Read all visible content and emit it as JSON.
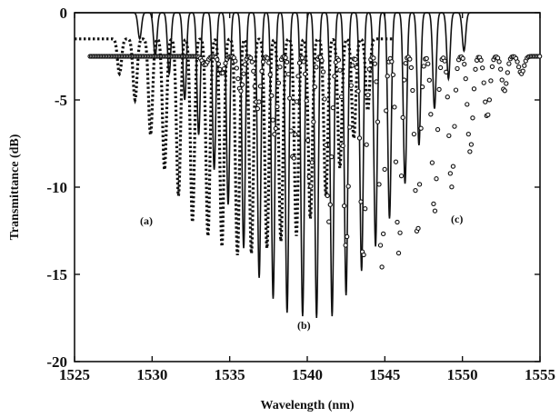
{
  "chart_data": {
    "type": "line",
    "title": "",
    "xlabel": "Wavelength (nm)",
    "ylabel": "Transmittance (dB)",
    "xlim": [
      1525,
      1555
    ],
    "ylim": [
      -20,
      0
    ],
    "xticks": [
      1525,
      1530,
      1535,
      1540,
      1545,
      1550,
      1555
    ],
    "yticks": [
      0,
      -5,
      -10,
      -15,
      -20
    ],
    "x_tick_labels": [
      "1525",
      "1530",
      "1535",
      "1540",
      "1545",
      "1550",
      "1555"
    ],
    "y_tick_labels": [
      "0",
      "-5",
      "-10",
      "-15",
      "-20"
    ],
    "grid": false,
    "line_color": "#111111",
    "series": [
      {
        "label": "(a)",
        "style": "dotted",
        "dip_wavelengths_nm": [
          1527.9,
          1528.9,
          1529.9,
          1530.8,
          1531.7,
          1532.6,
          1533.6,
          1534.5,
          1535.5,
          1536.4,
          1537.4,
          1538.3,
          1539.3,
          1540.2,
          1541.2,
          1542.1,
          1543.0,
          1543.9
        ],
        "dip_depths_db": [
          -3.5,
          -5.0,
          -7.0,
          -9.0,
          -10.5,
          -12.0,
          -12.8,
          -13.4,
          -13.9,
          -13.8,
          -13.5,
          -13.1,
          -12.8,
          -11.8,
          -10.5,
          -8.9,
          -7.2,
          -5.6
        ],
        "baseline_db": -1.5
      },
      {
        "label": "(b)",
        "style": "solid",
        "dip_wavelengths_nm": [
          1529.2,
          1530.2,
          1531.1,
          1532.1,
          1533.0,
          1534.0,
          1534.9,
          1535.9,
          1536.9,
          1537.8,
          1538.7,
          1539.7,
          1540.6,
          1541.6,
          1542.5,
          1543.5,
          1544.4,
          1545.3,
          1546.3,
          1547.2,
          1548.2,
          1549.1,
          1550.1
        ],
        "dip_depths_db": [
          -1.5,
          -2.5,
          -3.5,
          -5.0,
          -7.0,
          -9.0,
          -11.0,
          -13.5,
          -15.2,
          -16.4,
          -17.2,
          -17.4,
          -17.5,
          -17.4,
          -16.2,
          -14.8,
          -13.4,
          -11.8,
          -9.8,
          -7.6,
          -5.5,
          -3.8,
          -2.2
        ],
        "baseline_db": 0
      },
      {
        "label": "(c)",
        "style": "circles",
        "dip_wavelengths_nm": [
          1533.4,
          1534.5,
          1535.7,
          1536.8,
          1537.9,
          1539.1,
          1540.2,
          1541.4,
          1542.5,
          1543.6,
          1544.8,
          1545.9,
          1547.1,
          1548.2,
          1549.3,
          1550.5,
          1551.6,
          1552.7,
          1553.8
        ],
        "dip_depths_db": [
          -3.0,
          -3.5,
          -4.5,
          -5.5,
          -7.0,
          -8.5,
          -10.0,
          -12.0,
          -13.5,
          -14.2,
          -14.6,
          -13.8,
          -12.8,
          -11.5,
          -10.0,
          -8.0,
          -6.0,
          -4.5,
          -3.5
        ],
        "baseline_db": -2.5
      }
    ],
    "annotations": [
      "(a)",
      "(b)",
      "(c)"
    ]
  }
}
